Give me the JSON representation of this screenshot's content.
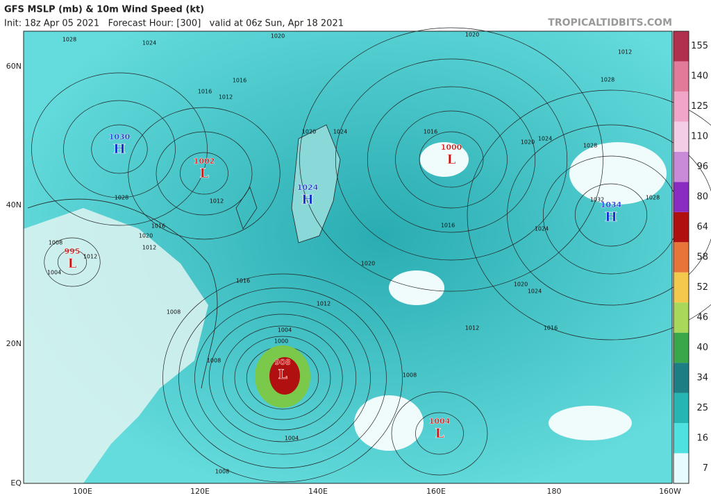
{
  "header": {
    "title": "GFS MSLP (mb) & 10m Wind Speed (kt)",
    "subtitle": "Init: 18z Apr 05 2021   Forecast Hour: [300]   valid at 06z Sun, Apr 18 2021",
    "watermark": "TROPICALTIDBITS.COM"
  },
  "map": {
    "lat_labels": [
      "60N",
      "40N",
      "20N",
      "EQ"
    ],
    "lon_labels": [
      "100E",
      "120E",
      "140E",
      "160E",
      "180",
      "160W"
    ],
    "centers": [
      {
        "letter": "H",
        "pressure": 1030
      },
      {
        "letter": "L",
        "pressure": 1002
      },
      {
        "letter": "H",
        "pressure": 1024
      },
      {
        "letter": "L",
        "pressure": 1000
      },
      {
        "letter": "H",
        "pressure": 1034
      },
      {
        "letter": "L",
        "pressure": 995
      },
      {
        "letter": "L",
        "pressure": 908
      },
      {
        "letter": "L",
        "pressure": 1004
      }
    ],
    "isobar_labels": [
      1028,
      1024,
      1020,
      1020,
      1016,
      1012,
      1016,
      1020,
      1024,
      1028,
      1020,
      1016,
      1012,
      1012,
      1016,
      1020,
      1024,
      1028,
      1032,
      1028,
      1024,
      1020,
      1016,
      1012,
      1008,
      1008,
      1004,
      1008,
      1012,
      1004,
      1000,
      1016,
      1020,
      1024,
      1028,
      1012,
      1016,
      1012,
      1008,
      1004,
      1008
    ]
  },
  "colorbar": {
    "ticks": [
      7,
      16,
      25,
      34,
      40,
      46,
      52,
      58,
      64,
      80,
      96,
      110,
      125,
      140,
      155
    ],
    "colors": [
      "#e6fbfb",
      "#4fe0e0",
      "#26b5b0",
      "#1d7f83",
      "#3aa84a",
      "#a8d85a",
      "#f2c94c",
      "#e8743a",
      "#b01010",
      "#8a2cc0",
      "#c98ad8",
      "#f3cde6",
      "#f1a6c8",
      "#e27a9a",
      "#b0304e"
    ]
  }
}
